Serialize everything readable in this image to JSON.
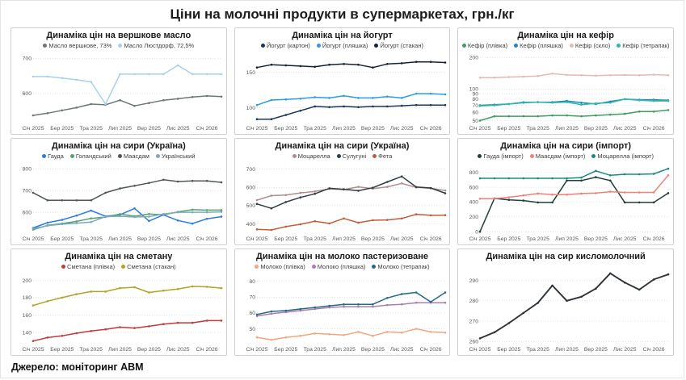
{
  "page": {
    "title": "Ціни на молочні продукти в супермаркетах, грн./кг",
    "source": "Джерело: моніторинг АВМ"
  },
  "x_labels": [
    "Січ 2025",
    "Бер 2025",
    "Тра 2025",
    "Лип 2025",
    "Вер 2025",
    "Лис 2025",
    "Січ 2026"
  ],
  "chart_data": [
    {
      "id": "butter",
      "type": "line",
      "title": "Динаміка цін на вершкове масло",
      "show_legend": true,
      "scale": "linear",
      "y_range": [
        515,
        712
      ],
      "y_ticks": [
        600,
        700
      ],
      "series": [
        {
          "name": "Масло вершкове, 73%",
          "color": "#6d7678",
          "values": [
            538,
            544,
            552,
            560,
            570,
            568,
            581,
            565,
            573,
            581,
            585,
            590,
            593,
            591
          ]
        },
        {
          "name": "Масло Люстдорф, 72,5%",
          "color": "#a6d2e8",
          "values": [
            648,
            648,
            644,
            639,
            633,
            570,
            655,
            655,
            655,
            655,
            680,
            655,
            655,
            655
          ]
        }
      ]
    },
    {
      "id": "yogurt",
      "type": "line",
      "title": "Динаміка цін на йогурт",
      "show_legend": true,
      "scale": "linear",
      "y_range": [
        78,
        176
      ],
      "y_ticks": [
        100,
        150
      ],
      "series": [
        {
          "name": "Йогурт (картон)",
          "color": "#17375e",
          "values": [
            84,
            84,
            90,
            96,
            102,
            101,
            102,
            101,
            102,
            102,
            103,
            104,
            104,
            104
          ]
        },
        {
          "name": "Йогурт (пляшка)",
          "color": "#2e9be4",
          "values": [
            104,
            111,
            112,
            113,
            115,
            114,
            117,
            114,
            114,
            116,
            114,
            120,
            120,
            119
          ]
        },
        {
          "name": "Йогурт (стакан)",
          "color": "#152232",
          "values": [
            157,
            161,
            160,
            159,
            158,
            161,
            162,
            161,
            157,
            162,
            163,
            165,
            165,
            164
          ]
        }
      ]
    },
    {
      "id": "kefir",
      "type": "line",
      "title": "Динаміка цін на кефір",
      "show_legend": true,
      "scale": "log",
      "y_range": [
        47,
        215
      ],
      "y_ticks": [
        50,
        60,
        70,
        80,
        90,
        100,
        200
      ],
      "series": [
        {
          "name": "Кефір (плівка)",
          "color": "#3f9d5f",
          "values": [
            50,
            55,
            55,
            55,
            55,
            56,
            56,
            55,
            56,
            57,
            58,
            61,
            61,
            63
          ]
        },
        {
          "name": "Кефір (пляшка)",
          "color": "#2188bd",
          "values": [
            70,
            71,
            72,
            74,
            75,
            75,
            77,
            74,
            72,
            76,
            80,
            79,
            79,
            78
          ]
        },
        {
          "name": "Кефір (скло)",
          "color": "#e5b9b5",
          "values": [
            128,
            128,
            130,
            131,
            133,
            140,
            136,
            135,
            134,
            135,
            136,
            135,
            137,
            135
          ]
        },
        {
          "name": "Кефір (тетрапак)",
          "color": "#30b7ac",
          "values": [
            69,
            70,
            72,
            75,
            75,
            74,
            75,
            71,
            73,
            74,
            80,
            78,
            77,
            77
          ]
        }
      ]
    },
    {
      "id": "cheese-ua-hard",
      "type": "line",
      "title": "Динаміка цін на сири (Україна)",
      "show_legend": true,
      "scale": "linear",
      "y_range": [
        500,
        820
      ],
      "y_ticks": [
        600,
        700,
        800
      ],
      "series": [
        {
          "name": "Гауда",
          "color": "#2d7ae5",
          "values": [
            528,
            552,
            565,
            585,
            608,
            582,
            588,
            618,
            560,
            588,
            562,
            548,
            570,
            580
          ]
        },
        {
          "name": "Голандський",
          "color": "#53a271",
          "values": [
            520,
            540,
            548,
            558,
            572,
            578,
            592,
            582,
            592,
            588,
            602,
            612,
            610,
            610
          ]
        },
        {
          "name": "Маасдам",
          "color": "#50575b",
          "values": [
            690,
            655,
            655,
            655,
            655,
            690,
            710,
            722,
            735,
            750,
            742,
            745,
            745,
            738
          ]
        },
        {
          "name": "Український",
          "color": "#7ea9bd",
          "values": [
            525,
            538,
            545,
            550,
            555,
            580,
            582,
            578,
            580,
            592,
            600,
            600,
            600,
            602
          ]
        }
      ]
    },
    {
      "id": "cheese-ua-soft",
      "type": "line",
      "title": "Динаміка цін на сири (Україна)",
      "show_legend": true,
      "scale": "linear",
      "y_range": [
        345,
        725
      ],
      "y_ticks": [
        400,
        500,
        600,
        700
      ],
      "series": [
        {
          "name": "Моцарелла",
          "color": "#b18e90",
          "values": [
            530,
            555,
            558,
            570,
            578,
            592,
            588,
            603,
            593,
            603,
            622,
            600,
            595,
            583
          ]
        },
        {
          "name": "Сулугуні",
          "color": "#313d45",
          "values": [
            510,
            485,
            520,
            545,
            565,
            595,
            590,
            582,
            598,
            630,
            660,
            602,
            597,
            568
          ]
        },
        {
          "name": "Фета",
          "color": "#c25c3c",
          "values": [
            370,
            367,
            385,
            398,
            415,
            403,
            430,
            407,
            420,
            422,
            430,
            453,
            447,
            448
          ]
        }
      ]
    },
    {
      "id": "cheese-import",
      "type": "line",
      "title": "Динаміка цін на сири (імпорт)",
      "show_legend": true,
      "scale": "linear",
      "y_range": [
        -30,
        905
      ],
      "y_ticks": [
        0,
        200,
        400,
        600,
        800
      ],
      "series": [
        {
          "name": "Гауда (імпорт)",
          "color": "#203f38",
          "values": [
            0,
            450,
            430,
            420,
            395,
            395,
            690,
            690,
            735,
            690,
            395,
            395,
            395,
            520
          ]
        },
        {
          "name": "Маасдам (імпорт)",
          "color": "#f08078",
          "values": [
            445,
            445,
            465,
            490,
            515,
            500,
            500,
            515,
            520,
            540,
            530,
            530,
            530,
            760
          ]
        },
        {
          "name": "Моцарелла (імпорт)",
          "color": "#1a8a7f",
          "values": [
            720,
            720,
            720,
            720,
            720,
            720,
            720,
            730,
            820,
            760,
            775,
            775,
            780,
            850
          ]
        }
      ]
    },
    {
      "id": "smetana",
      "type": "line",
      "title": "Динаміка цін на сметану",
      "show_legend": true,
      "scale": "linear",
      "y_range": [
        126,
        206
      ],
      "y_ticks": [
        140,
        160,
        180,
        200
      ],
      "series": [
        {
          "name": "Сметана (плівка)",
          "color": "#c13b3b",
          "values": [
            130,
            134,
            136,
            139,
            141.5,
            143.5,
            146,
            145,
            147,
            149.5,
            151,
            151,
            153.5,
            153.5
          ]
        },
        {
          "name": "Сметана (стакан)",
          "color": "#b5a126",
          "values": [
            171,
            176,
            180,
            184,
            187,
            187,
            191,
            192,
            186,
            188,
            190,
            193,
            192.5,
            191
          ]
        }
      ]
    },
    {
      "id": "milk",
      "type": "line",
      "title": "Динаміка цін на молоко пастеризоване",
      "show_legend": true,
      "scale": "linear",
      "y_range": [
        40,
        84
      ],
      "y_ticks": [
        50,
        60,
        70,
        80
      ],
      "series": [
        {
          "name": "Молоко (плівка)",
          "color": "#f4a67e",
          "values": [
            44.5,
            43,
            44.5,
            45.5,
            47,
            46.5,
            46,
            48,
            45.5,
            48,
            47.5,
            50,
            48,
            47.5
          ]
        },
        {
          "name": "Молоко (пляшка)",
          "color": "#ad7cb0",
          "values": [
            58,
            59.5,
            60.5,
            61.5,
            62.5,
            63.5,
            64,
            64,
            64,
            65,
            65.5,
            66.5,
            66.5,
            66.5
          ]
        },
        {
          "name": "Молоко (тетрапак)",
          "color": "#226c85",
          "values": [
            59,
            61,
            61.5,
            62.5,
            63.5,
            64.5,
            65.5,
            65.5,
            65.5,
            69.5,
            72,
            73,
            67,
            73
          ]
        }
      ]
    },
    {
      "id": "cottage-cheese",
      "type": "line",
      "title": "Динаміка цін на сир кисломолочний",
      "show_legend": false,
      "scale": "linear",
      "y_range": [
        258.5,
        297
      ],
      "y_ticks": [
        260,
        270,
        280,
        290
      ],
      "series": [
        {
          "color": "#2e3338",
          "values": [
            261.5,
            264.5,
            269,
            274,
            279,
            287.5,
            280,
            282,
            286,
            293.5,
            289,
            285.5,
            290.5,
            293
          ]
        }
      ]
    }
  ]
}
